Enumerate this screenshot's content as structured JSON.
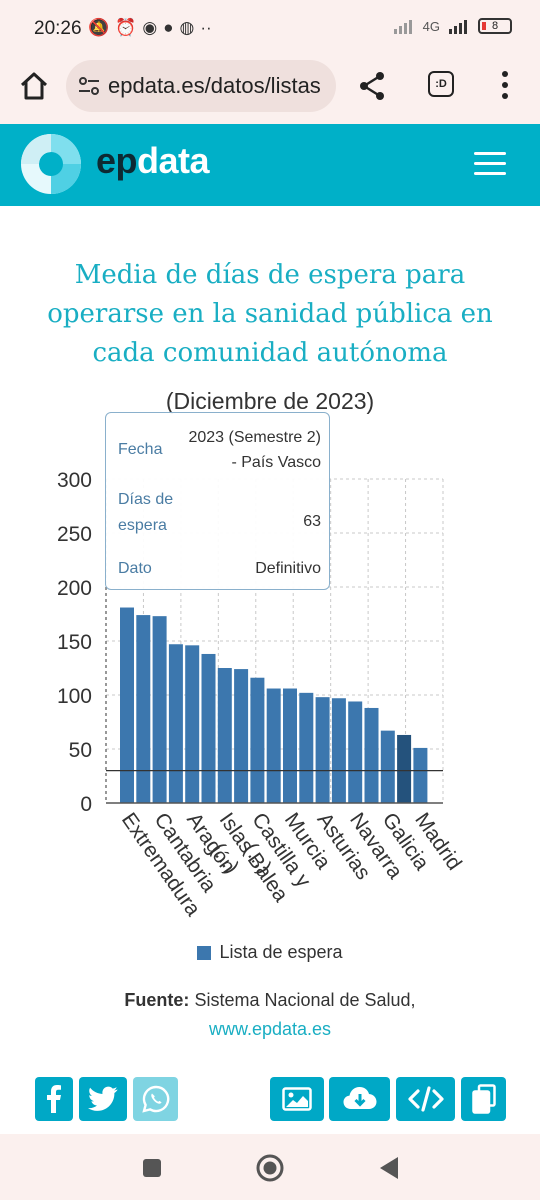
{
  "status_bar": {
    "time": "20:26",
    "network": "4G",
    "battery": "8"
  },
  "browser": {
    "url": "epdata.es/datos/listas"
  },
  "site": {
    "logo_part1": "ep",
    "logo_part2": "data"
  },
  "chart": {
    "title": "Media de días de espera para operarse en la sanidad pública en cada comunidad autónoma",
    "subtitle": "(Diciembre de 2023)",
    "tooltip": {
      "fecha_label": "Fecha",
      "fecha_value": "2023 (Semestre 2) - País Vasco",
      "dias_label": "Días de espera",
      "dias_value": "63",
      "dato_label": "Dato",
      "dato_value": "Definitivo"
    },
    "legend": "Lista de espera",
    "source_label": "Fuente:",
    "source_text": "Sistema Nacional de Salud,",
    "source_link": "www.epdata.es"
  },
  "chart_data": {
    "type": "bar",
    "title": "Media de días de espera para operarse en la sanidad pública en cada comunidad autónoma",
    "subtitle": "(Diciembre de 2023)",
    "xlabel": "",
    "ylabel": "",
    "ylim": [
      0,
      300
    ],
    "yticks": [
      0,
      50,
      100,
      150,
      200,
      250,
      300
    ],
    "grid": true,
    "legend_position": "bottom",
    "categories": [
      "Extremadura",
      "",
      "Cantabria",
      "",
      "Aragón",
      "",
      "Islas Balea (...)",
      "",
      "Castilla y (...)",
      "",
      "Murcia",
      "",
      "Asturias",
      "",
      "Navarra",
      "",
      "Galicia",
      "",
      "Madrid"
    ],
    "series": [
      {
        "name": "Lista de espera",
        "values": [
          181,
          174,
          173,
          147,
          146,
          138,
          125,
          124,
          116,
          106,
          106,
          102,
          98,
          97,
          94,
          88,
          67,
          63,
          51
        ]
      }
    ],
    "highlighted_index": 17,
    "reference_line": 30,
    "colors": {
      "bar": "#3c77ae",
      "highlight": "#24527c",
      "title": "#19aec3"
    }
  },
  "share": {
    "facebook_icon": "facebook-icon",
    "twitter_icon": "twitter-icon",
    "whatsapp_icon": "whatsapp-icon",
    "image_icon": "image-icon",
    "download_icon": "download-icon",
    "embed_icon": "embed-icon",
    "copy_icon": "copy-icon"
  }
}
